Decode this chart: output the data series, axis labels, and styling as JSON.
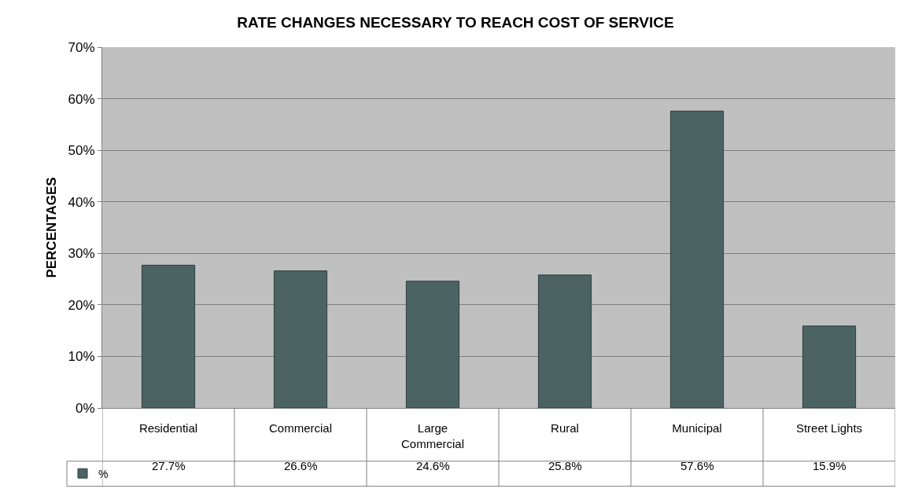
{
  "chart_data": {
    "type": "bar",
    "title": "RATE CHANGES NECESSARY TO REACH COST OF SERVICE",
    "ylabel": "PERCENTAGES",
    "categories": [
      "Residential",
      "Commercial",
      "Large Commercial",
      "Rural",
      "Municipal",
      "Street Lights"
    ],
    "series": [
      {
        "name": "%",
        "color": "#4b6363",
        "values": [
          27.7,
          26.6,
          24.6,
          25.8,
          57.6,
          15.9
        ],
        "value_labels": [
          "27.7%",
          "26.6%",
          "24.6%",
          "25.8%",
          "57.6%",
          "15.9%"
        ]
      }
    ],
    "ylim": [
      0,
      70
    ],
    "yticks": [
      {
        "value": 0,
        "label": "0%"
      },
      {
        "value": 10,
        "label": "10%"
      },
      {
        "value": 20,
        "label": "20%"
      },
      {
        "value": 30,
        "label": "30%"
      },
      {
        "value": 40,
        "label": "40%"
      },
      {
        "value": 50,
        "label": "50%"
      },
      {
        "value": 60,
        "label": "60%"
      },
      {
        "value": 70,
        "label": "70%"
      }
    ],
    "grid": "y",
    "legend": "bottom left"
  }
}
